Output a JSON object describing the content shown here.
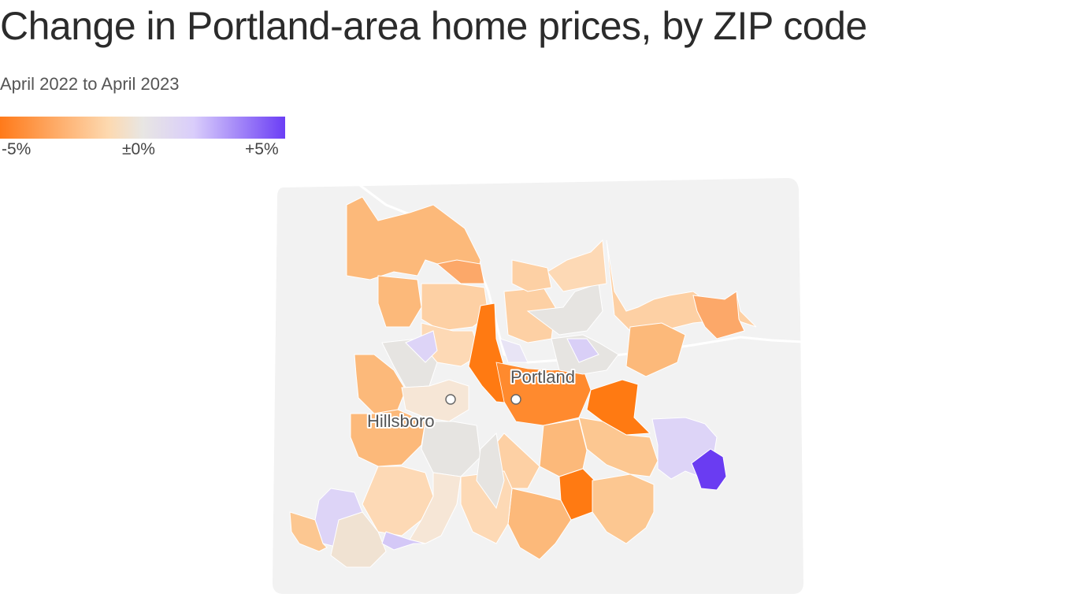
{
  "title": "Change in Portland-area home prices, by ZIP code",
  "subtitle": "April 2022 to April 2023",
  "legend": {
    "min_label": "-5%",
    "mid_label": "±0%",
    "max_label": "+5%",
    "colors": [
      "#ff7a1a",
      "#fdd9b0",
      "#e8e6e3",
      "#d9cdfb",
      "#6b3ef5"
    ]
  },
  "map": {
    "cities": [
      {
        "name": "Portland"
      },
      {
        "name": "Hillsboro"
      }
    ],
    "colors": {
      "background_land": "#f0f0f0",
      "river": "#ffffff",
      "strong_decline": "#ff7a12",
      "moderate_decline": "#fcb97a",
      "slight_decline": "#fdd9b5",
      "neutral": "#e6e4e1",
      "slight_increase": "#ddd4f7",
      "strong_increase": "#6a3cf2"
    }
  }
}
